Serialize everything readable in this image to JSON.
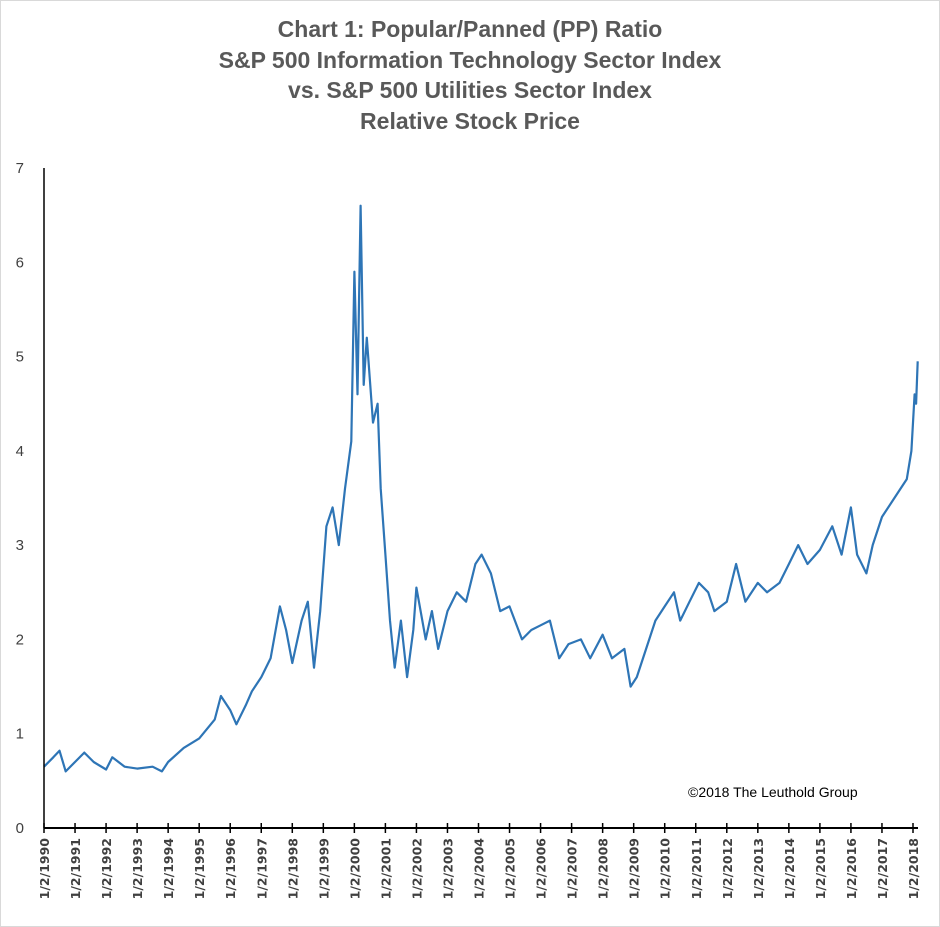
{
  "chart_data": {
    "type": "line",
    "title": [
      "Chart 1: Popular/Panned (PP) Ratio",
      "S&P 500 Information Technology Sector Index",
      "vs. S&P 500 Utilities Sector Index",
      "Relative Stock Price"
    ],
    "xlabel": "",
    "ylabel": "",
    "ylim": [
      0,
      7
    ],
    "yticks": [
      "0",
      "1",
      "2",
      "3",
      "4",
      "5",
      "6",
      "7"
    ],
    "xlim": [
      1990,
      2018.25
    ],
    "xticks": [
      "1/2/1990",
      "1/2/1991",
      "1/2/1992",
      "1/2/1993",
      "1/2/1994",
      "1/2/1995",
      "1/2/1996",
      "1/2/1997",
      "1/2/1998",
      "1/2/1999",
      "1/2/2000",
      "1/2/2001",
      "1/2/2002",
      "1/2/2003",
      "1/2/2004",
      "1/2/2005",
      "1/2/2006",
      "1/2/2007",
      "1/2/2008",
      "1/2/2009",
      "1/2/2010",
      "1/2/2011",
      "1/2/2012",
      "1/2/2013",
      "1/2/2014",
      "1/2/2015",
      "1/2/2016",
      "1/2/2017",
      "1/2/2018"
    ],
    "grid": false,
    "line_color": "#2e75b6",
    "annotation": "©2018 The Leuthold Group",
    "series": [
      {
        "x": [
          1990.0,
          1990.3,
          1990.5,
          1990.7,
          1991.0,
          1991.3,
          1991.6,
          1992.0,
          1992.2,
          1992.6,
          1993.0,
          1993.5,
          1993.8,
          1994.0,
          1994.5,
          1995.0,
          1995.5,
          1995.7,
          1996.0,
          1996.2,
          1996.5,
          1996.7,
          1997.0,
          1997.3,
          1997.6,
          1997.8,
          1998.0,
          1998.3,
          1998.5,
          1998.7,
          1998.9,
          1999.1,
          1999.3,
          1999.5,
          1999.7,
          1999.9,
          2000.0,
          2000.1,
          2000.2,
          2000.3,
          2000.4,
          2000.6,
          2000.75,
          2000.85,
          2001.0,
          2001.15,
          2001.3,
          2001.5,
          2001.7,
          2001.9,
          2002.0,
          2002.3,
          2002.5,
          2002.7,
          2003.0,
          2003.3,
          2003.6,
          2003.9,
          2004.1,
          2004.4,
          2004.7,
          2005.0,
          2005.4,
          2005.7,
          2006.0,
          2006.3,
          2006.6,
          2006.9,
          2007.3,
          2007.6,
          2008.0,
          2008.3,
          2008.7,
          2008.9,
          2009.1,
          2009.4,
          2009.7,
          2010.0,
          2010.3,
          2010.5,
          2010.8,
          2011.1,
          2011.4,
          2011.6,
          2012.0,
          2012.3,
          2012.6,
          2013.0,
          2013.3,
          2013.7,
          2014.0,
          2014.3,
          2014.6,
          2015.0,
          2015.4,
          2015.7,
          2016.0,
          2016.2,
          2016.5,
          2016.7,
          2017.0,
          2017.4,
          2017.8,
          2017.95,
          2018.05,
          2018.1,
          2018.15
        ],
        "y": [
          0.65,
          0.75,
          0.82,
          0.6,
          0.7,
          0.8,
          0.7,
          0.62,
          0.75,
          0.65,
          0.63,
          0.65,
          0.6,
          0.7,
          0.85,
          0.95,
          1.15,
          1.4,
          1.25,
          1.1,
          1.3,
          1.45,
          1.6,
          1.8,
          2.35,
          2.1,
          1.75,
          2.2,
          2.4,
          1.7,
          2.3,
          3.2,
          3.4,
          3.0,
          3.6,
          4.1,
          5.9,
          4.6,
          6.6,
          4.7,
          5.2,
          4.3,
          4.5,
          3.6,
          2.9,
          2.2,
          1.7,
          2.2,
          1.6,
          2.1,
          2.55,
          2.0,
          2.3,
          1.9,
          2.3,
          2.5,
          2.4,
          2.8,
          2.9,
          2.7,
          2.3,
          2.35,
          2.0,
          2.1,
          2.15,
          2.2,
          1.8,
          1.95,
          2.0,
          1.8,
          2.05,
          1.8,
          1.9,
          1.5,
          1.6,
          1.9,
          2.2,
          2.35,
          2.5,
          2.2,
          2.4,
          2.6,
          2.5,
          2.3,
          2.4,
          2.8,
          2.4,
          2.6,
          2.5,
          2.6,
          2.8,
          3.0,
          2.8,
          2.95,
          3.2,
          2.9,
          3.4,
          2.9,
          2.7,
          3.0,
          3.3,
          3.5,
          3.7,
          4.0,
          4.6,
          4.5,
          4.95
        ]
      }
    ]
  }
}
